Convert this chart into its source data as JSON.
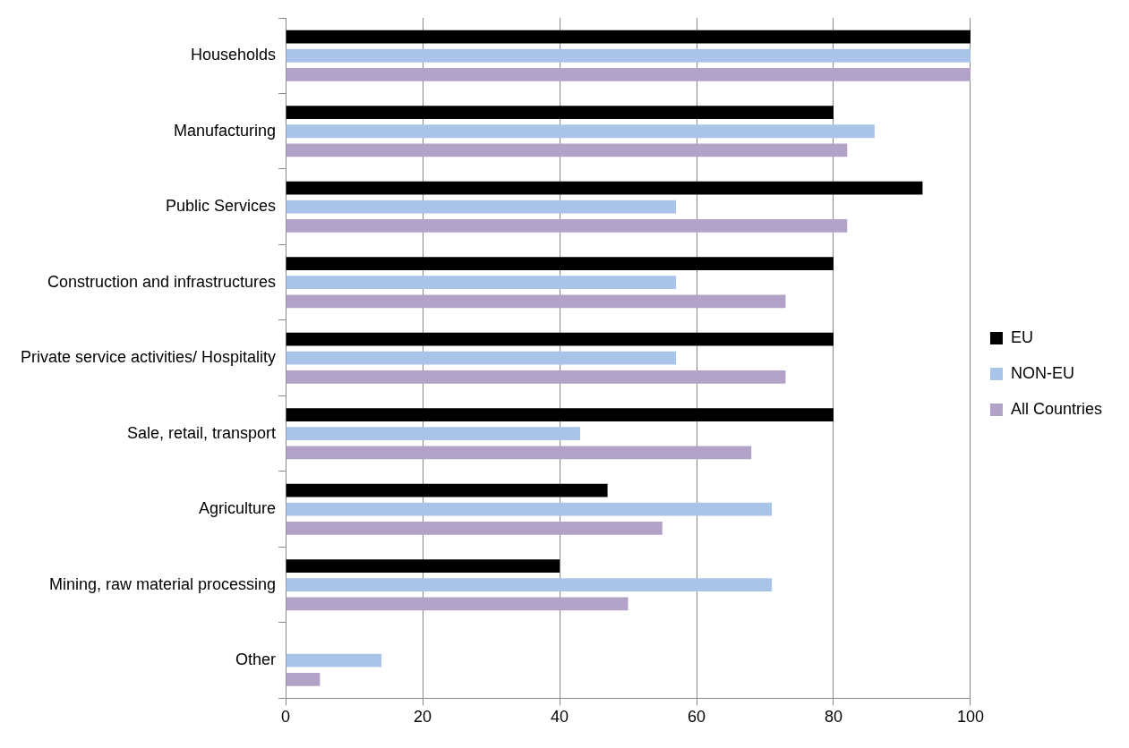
{
  "chart_data": {
    "type": "bar",
    "orientation": "horizontal",
    "categories": [
      "Households",
      "Manufacturing",
      "Public Services",
      "Construction and infrastructures",
      "Private service activities/ Hospitality",
      "Sale, retail, transport",
      "Agriculture",
      "Mining, raw material processing",
      "Other"
    ],
    "series": [
      {
        "name": "EU",
        "color": "#000000",
        "values": [
          100,
          80,
          93,
          80,
          80,
          80,
          47,
          40,
          0
        ]
      },
      {
        "name": "NON-EU",
        "color": "#a9c4e8",
        "values": [
          100,
          86,
          57,
          57,
          57,
          43,
          71,
          71,
          14
        ]
      },
      {
        "name": "All Countries",
        "color": "#b3a2c7",
        "values": [
          100,
          82,
          82,
          73,
          73,
          68,
          55,
          50,
          5
        ]
      }
    ],
    "xlim": [
      0,
      100
    ],
    "xticks": [
      0,
      20,
      40,
      60,
      80,
      100
    ],
    "grid": "x",
    "legend": "right"
  }
}
